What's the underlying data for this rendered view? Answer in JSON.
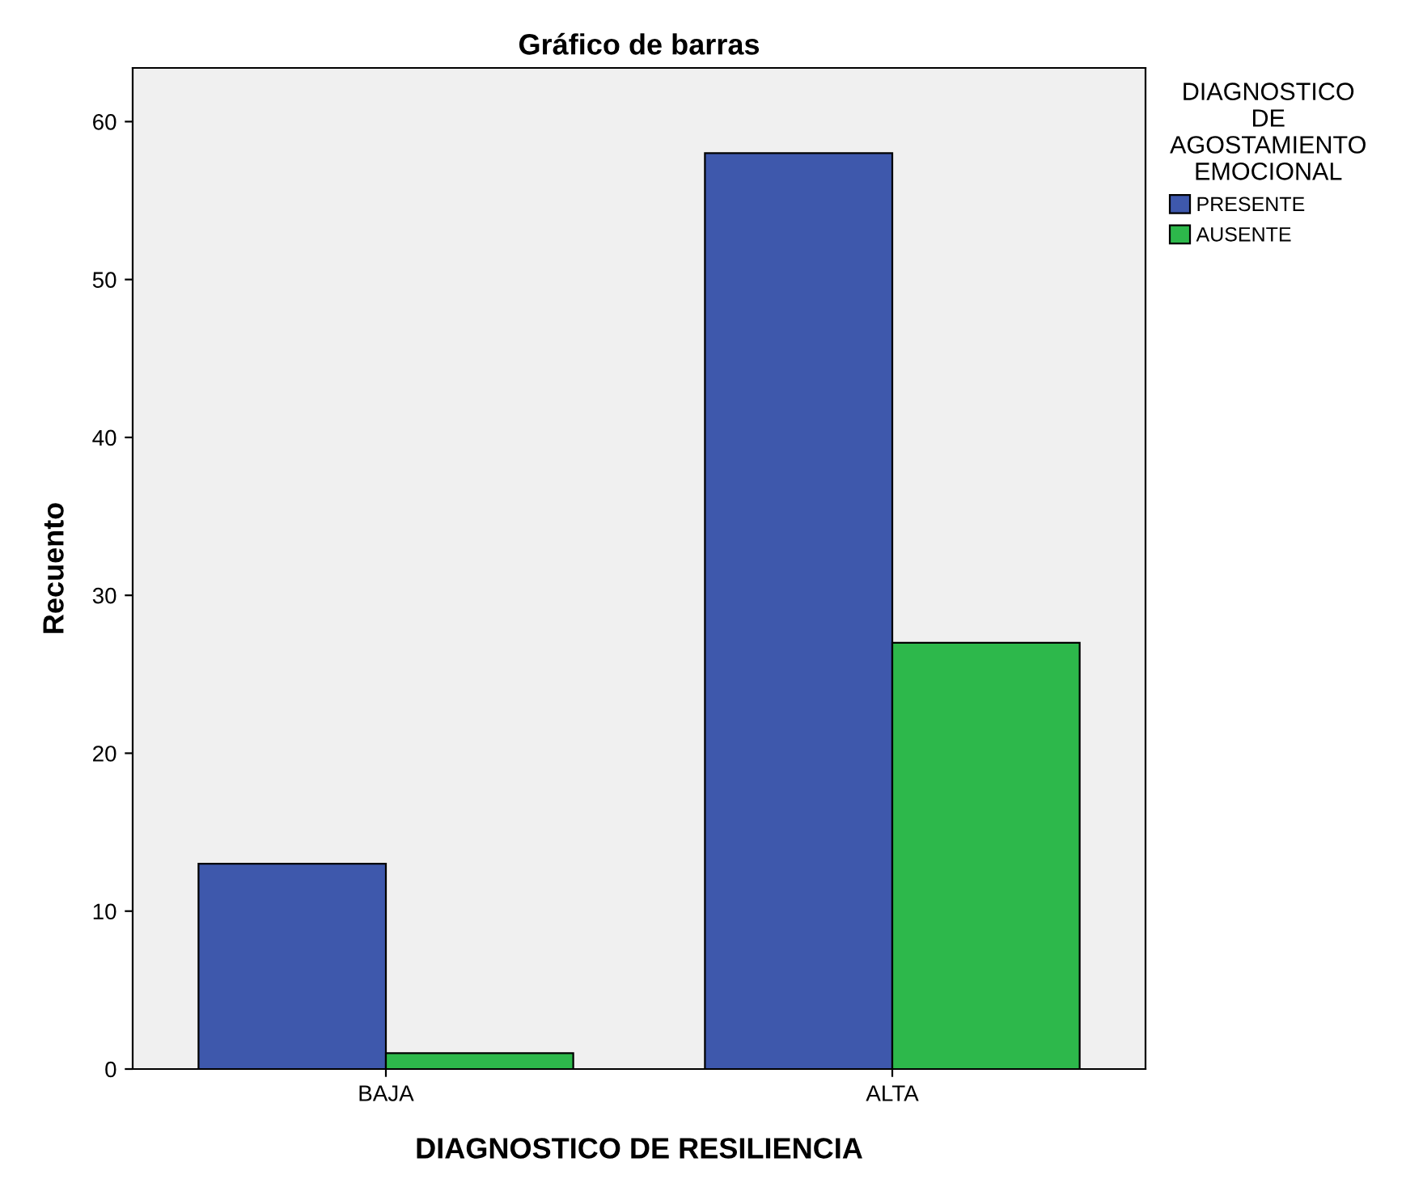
{
  "chart_data": {
    "type": "bar",
    "title": "Gráfico de barras",
    "xlabel": "DIAGNOSTICO DE RESILIENCIA",
    "ylabel": "Recuento",
    "categories": [
      "BAJA",
      "ALTA"
    ],
    "series": [
      {
        "name": "PRESENTE",
        "color": "#3e58ac",
        "values": [
          13,
          58
        ]
      },
      {
        "name": "AUSENTE",
        "color": "#2db84b",
        "values": [
          1,
          27
        ]
      }
    ],
    "legend_title": "DIAGNOSTICO\nDE\nAGOSTAMIENTO\nEMOCIONAL",
    "legend": "right",
    "ylim": [
      0,
      63.4
    ],
    "yticks": [
      0,
      10,
      20,
      30,
      40,
      50,
      60
    ],
    "grid": false
  }
}
